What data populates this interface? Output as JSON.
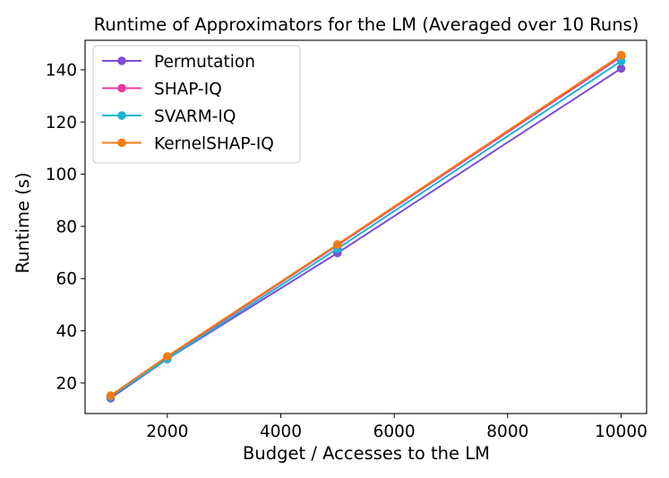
{
  "chart_data": {
    "type": "line",
    "title": "Runtime of Approximators for the LM (Averaged over 10 Runs)",
    "xlabel": "Budget / Accesses to the LM",
    "ylabel": "Runtime (s)",
    "x": [
      1000,
      2000,
      5000,
      10000
    ],
    "xlim": [
      550,
      10450
    ],
    "ylim": [
      8.3,
      151.3
    ],
    "xticks": [
      2000,
      4000,
      6000,
      8000,
      10000
    ],
    "yticks": [
      20,
      40,
      60,
      80,
      100,
      120,
      140
    ],
    "grid": false,
    "legend_position": "top-left",
    "series": [
      {
        "name": "Permutation",
        "color": "#7b4fd6",
        "values": [
          14.2,
          29.2,
          69.8,
          140.5
        ]
      },
      {
        "name": "SHAP-IQ",
        "color": "#f0389a",
        "values": [
          15.0,
          29.9,
          72.8,
          145.0
        ]
      },
      {
        "name": "SVARM-IQ",
        "color": "#1ab5d4",
        "values": [
          14.8,
          29.3,
          71.5,
          143.3
        ]
      },
      {
        "name": "KernelSHAP-IQ",
        "color": "#f47b12",
        "values": [
          15.2,
          30.2,
          73.1,
          145.6
        ]
      }
    ]
  }
}
